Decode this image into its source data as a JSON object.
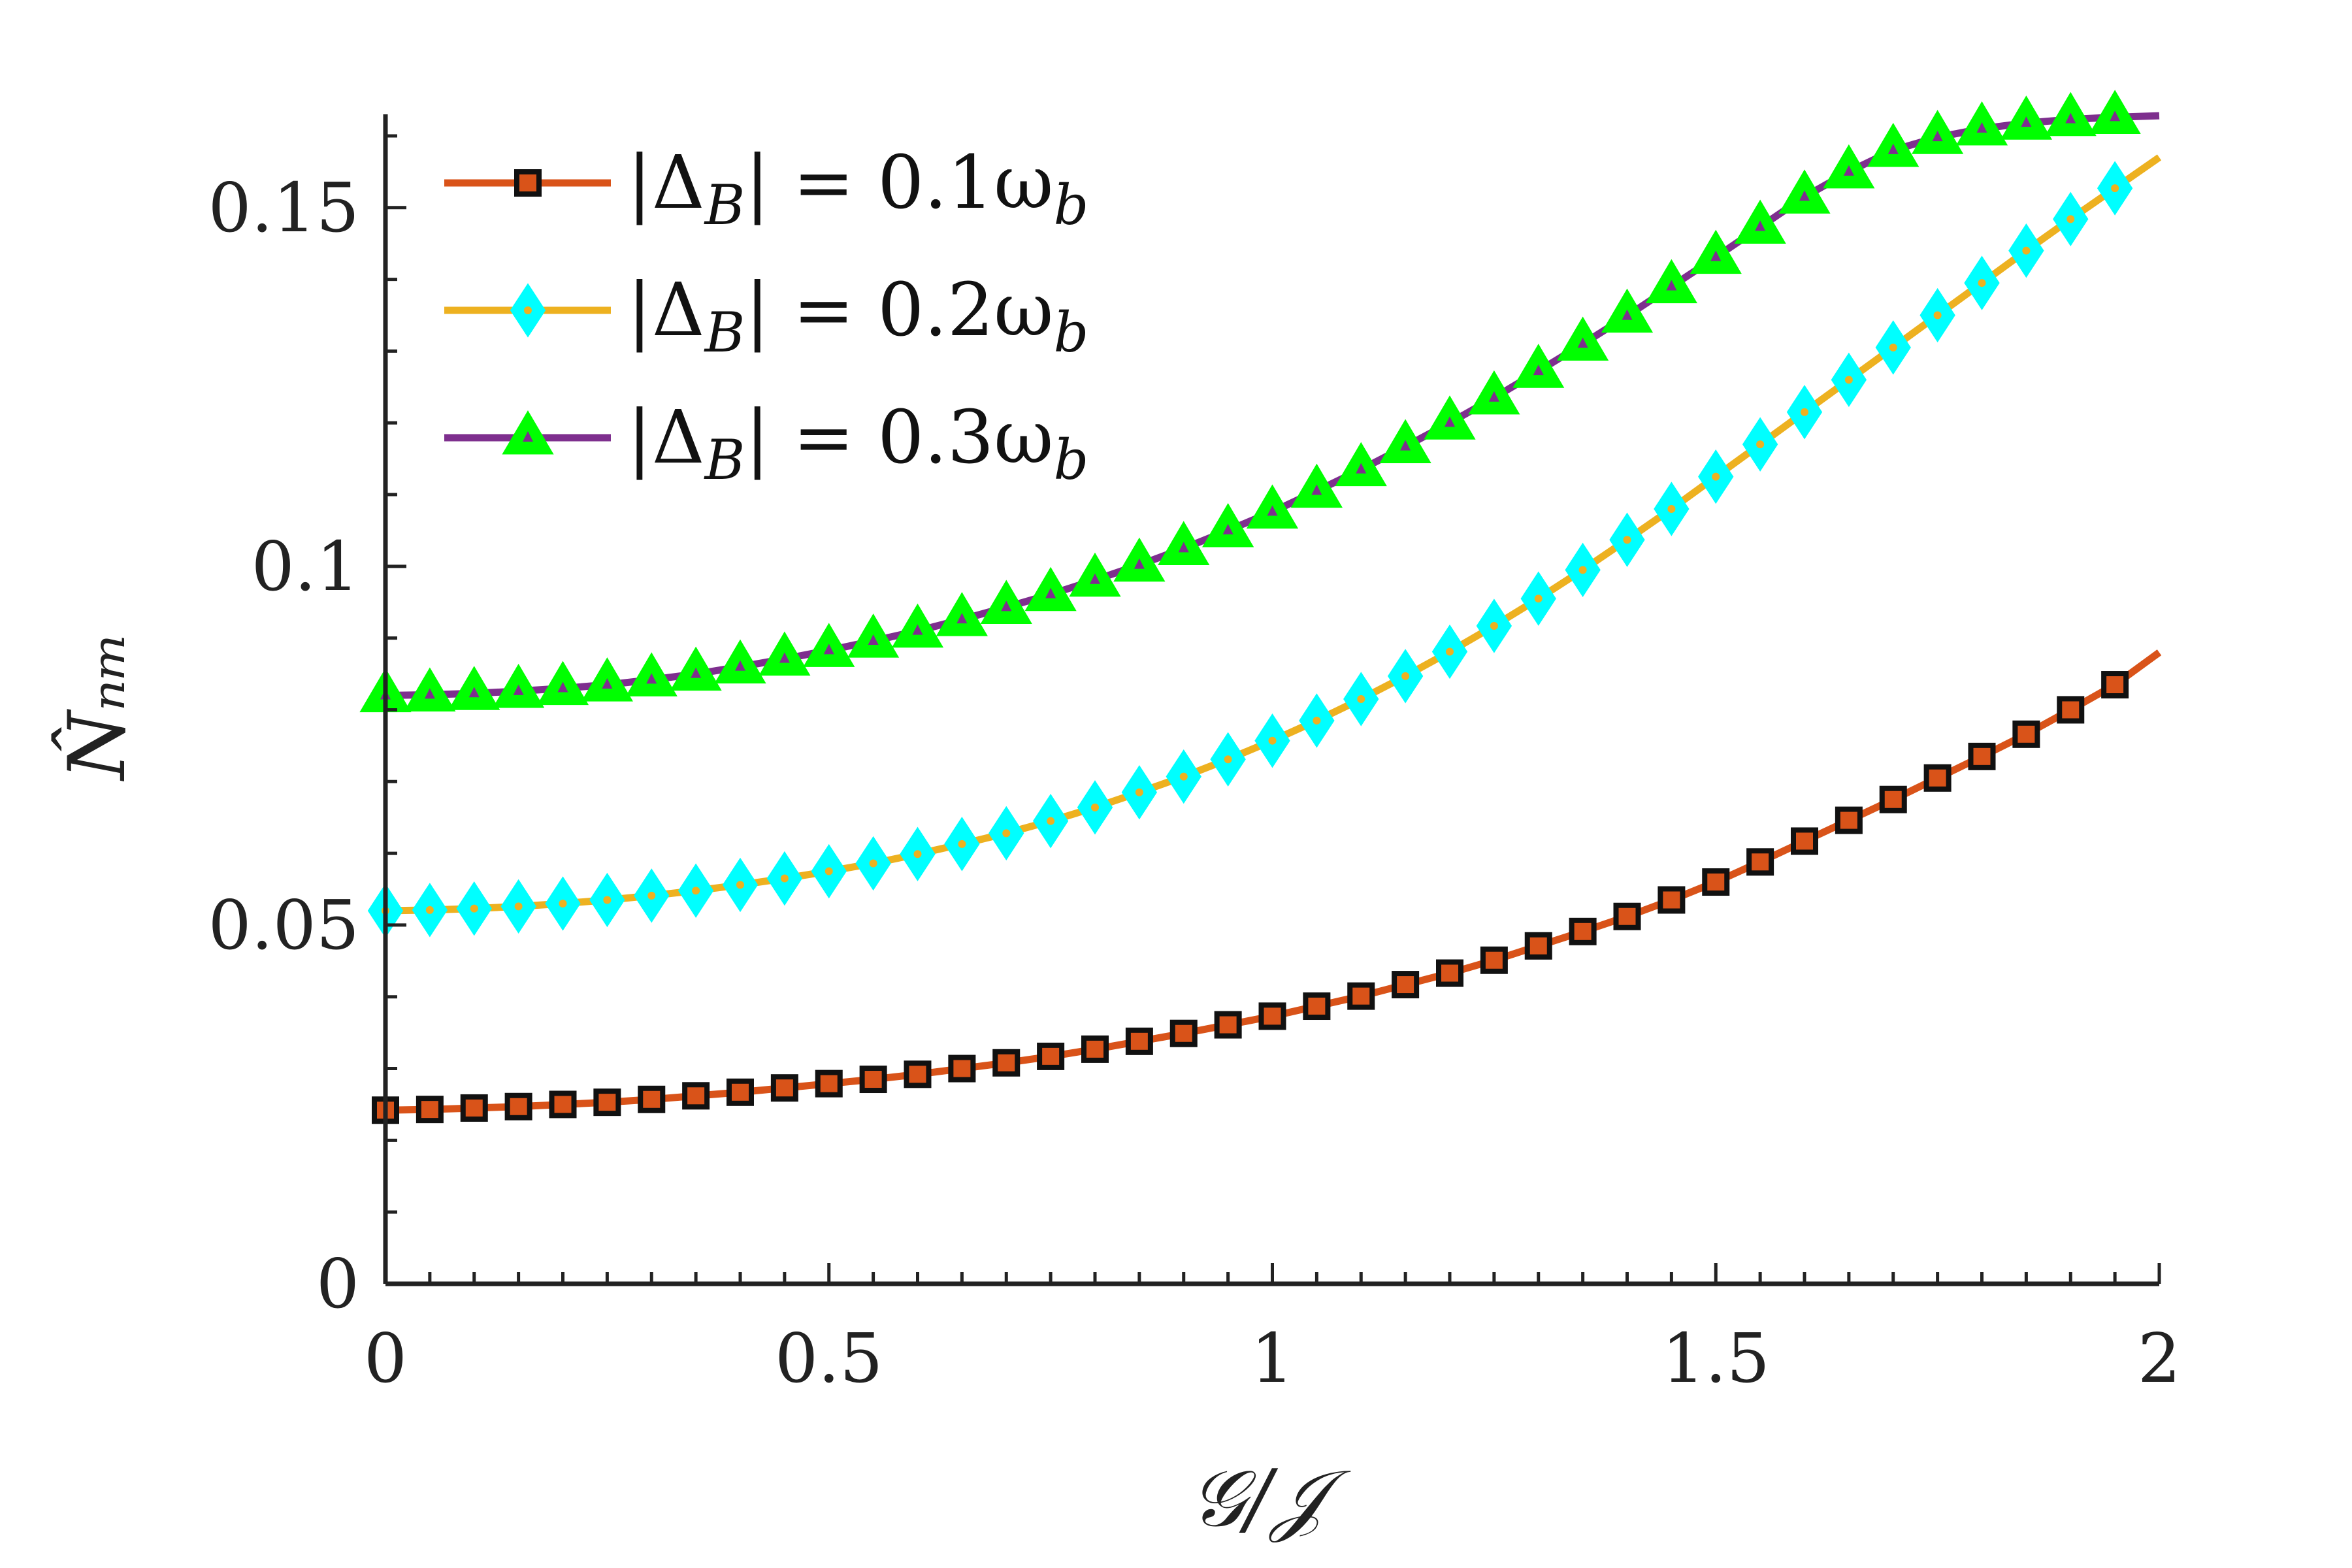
{
  "chart_data": {
    "type": "line",
    "title": "",
    "xlabel": "𝒢/𝒥",
    "ylabel": "N̂ₙₘ",
    "xlim": [
      0,
      2
    ],
    "ylim": [
      0,
      0.163
    ],
    "xticks": [
      0,
      0.5,
      1,
      1.5,
      2
    ],
    "xtick_labels": [
      "0",
      "0.5",
      "1",
      "1.5",
      "2"
    ],
    "yticks": [
      0,
      0.05,
      0.1,
      0.15
    ],
    "ytick_labels": [
      "0",
      "0.05",
      "0.1",
      "0.15"
    ],
    "grid": false,
    "legend_position": "top-left",
    "line_x": [
      0,
      0.05,
      0.1,
      0.15,
      0.2,
      0.25,
      0.3,
      0.35,
      0.4,
      0.45,
      0.5,
      0.55,
      0.6,
      0.65,
      0.7,
      0.75,
      0.8,
      0.85,
      0.9,
      0.95,
      1.0,
      1.05,
      1.1,
      1.15,
      1.2,
      1.25,
      1.3,
      1.35,
      1.4,
      1.45,
      1.5,
      1.55,
      1.6,
      1.65,
      1.7,
      1.75,
      1.8,
      1.85,
      1.9,
      1.95,
      2.0
    ],
    "marker_x": [
      0,
      0.05,
      0.1,
      0.15,
      0.2,
      0.25,
      0.3,
      0.35,
      0.4,
      0.45,
      0.5,
      0.55,
      0.6,
      0.65,
      0.7,
      0.75,
      0.8,
      0.85,
      0.9,
      0.95,
      1.0,
      1.05,
      1.1,
      1.15,
      1.2,
      1.25,
      1.3,
      1.35,
      1.4,
      1.45,
      1.5,
      1.55,
      1.6,
      1.65,
      1.7,
      1.75,
      1.8,
      1.85,
      1.9,
      1.95
    ],
    "series": [
      {
        "name": "|Δ_B| = 0.1ω_b",
        "legend_main": "|Δ",
        "legend_sub": "B",
        "legend_rest": "| = 0.1ω",
        "legend_sub2": "b",
        "line_color": "#D95319",
        "marker": "square",
        "marker_fill": "#D95319",
        "marker_edge": "#111111",
        "values": [
          0.0242,
          0.0243,
          0.0245,
          0.0247,
          0.025,
          0.0253,
          0.0257,
          0.0262,
          0.0267,
          0.0273,
          0.0279,
          0.0285,
          0.0292,
          0.03,
          0.0308,
          0.0317,
          0.0327,
          0.0338,
          0.0349,
          0.0361,
          0.0373,
          0.0387,
          0.0401,
          0.0417,
          0.0433,
          0.0451,
          0.0471,
          0.0491,
          0.0512,
          0.0535,
          0.056,
          0.0588,
          0.0617,
          0.0646,
          0.0675,
          0.0705,
          0.0735,
          0.0766,
          0.08,
          0.0835,
          0.088
        ]
      },
      {
        "name": "|Δ_B| = 0.2ω_b",
        "legend_main": "|Δ",
        "legend_sub": "B",
        "legend_rest": "| = 0.2ω",
        "legend_sub2": "b",
        "line_color": "#EDB120",
        "marker": "diamond",
        "marker_fill": "#00FFFF",
        "marker_edge": "#00FFFF",
        "values": [
          0.052,
          0.0521,
          0.0523,
          0.0526,
          0.053,
          0.0535,
          0.0541,
          0.0548,
          0.0556,
          0.0565,
          0.0575,
          0.0586,
          0.0599,
          0.0613,
          0.0628,
          0.0645,
          0.0664,
          0.0685,
          0.0707,
          0.0731,
          0.0757,
          0.0785,
          0.0815,
          0.0847,
          0.0881,
          0.0917,
          0.0955,
          0.0995,
          0.1037,
          0.108,
          0.1125,
          0.117,
          0.1215,
          0.126,
          0.1305,
          0.135,
          0.1395,
          0.144,
          0.1484,
          0.1527,
          0.157
        ]
      },
      {
        "name": "|Δ_B| = 0.3ω_b",
        "legend_main": "|Δ",
        "legend_sub": "B",
        "legend_rest": "| = 0.3ω",
        "legend_sub2": "b",
        "line_color": "#7E2F8E",
        "marker": "triangle",
        "marker_fill": "#00FF00",
        "marker_edge": "#00FF00",
        "values": [
          0.082,
          0.0821,
          0.0823,
          0.0826,
          0.083,
          0.0835,
          0.0842,
          0.085,
          0.086,
          0.0871,
          0.0883,
          0.0896,
          0.091,
          0.0926,
          0.0943,
          0.0961,
          0.0981,
          0.1002,
          0.1025,
          0.105,
          0.1076,
          0.1105,
          0.1135,
          0.1167,
          0.12,
          0.1235,
          0.1272,
          0.131,
          0.1349,
          0.139,
          0.1431,
          0.1473,
          0.1515,
          0.155,
          0.158,
          0.1598,
          0.161,
          0.1618,
          0.1623,
          0.1626,
          0.1628
        ]
      }
    ]
  }
}
